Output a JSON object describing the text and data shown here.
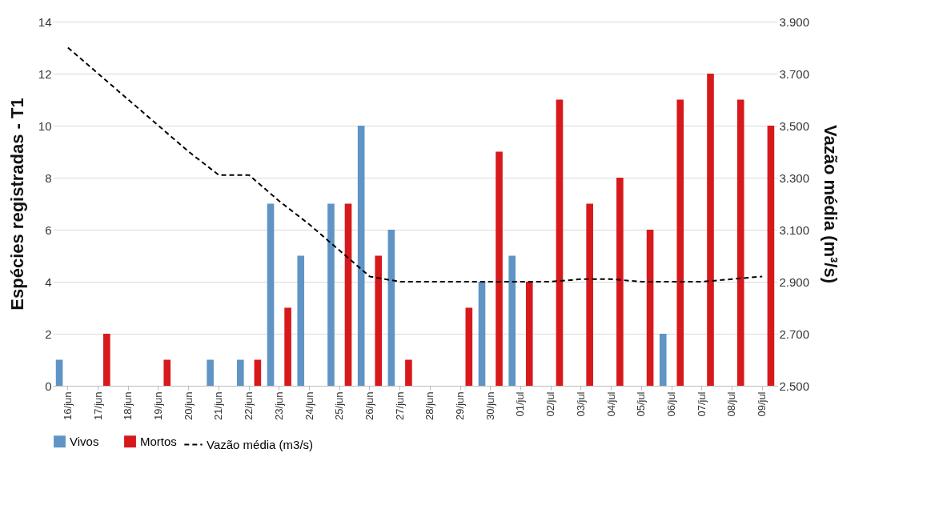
{
  "chart_data": {
    "type": "bar",
    "ylabel": "Espécies registradas - T1",
    "y2label": "Vazão média (m³/s)",
    "categories": [
      "16/jun",
      "17/jun",
      "18/jun",
      "19/jun",
      "20/jun",
      "21/jun",
      "22/jun",
      "23/jun",
      "24/jun",
      "25/jun",
      "26/jun",
      "27/jun",
      "28/jun",
      "29/jun",
      "30/jun",
      "01/jul",
      "02/jul",
      "03/jul",
      "04/jul",
      "05/jul",
      "06/jul",
      "07/jul",
      "08/jul",
      "09/jul"
    ],
    "series": [
      {
        "name": "Vivos",
        "color": "#5f94c4",
        "values": [
          1,
          0,
          0,
          0,
          0,
          1,
          1,
          7,
          5,
          7,
          10,
          6,
          0,
          0,
          4,
          5,
          0,
          0,
          0,
          0,
          2,
          0,
          0,
          0
        ]
      },
      {
        "name": "Mortos",
        "color": "#d7191c",
        "values": [
          0,
          2,
          0,
          1,
          0,
          0,
          1,
          3,
          0,
          7,
          5,
          1,
          0,
          3,
          9,
          4,
          11,
          7,
          8,
          6,
          11,
          12,
          11,
          10
        ]
      },
      {
        "name": "Vazão média (m3/s)",
        "color": "#000000",
        "type": "line",
        "axis": "y2",
        "line_style": "dashed",
        "values": [
          3.8,
          3.7,
          3.6,
          3.5,
          3.4,
          3.31,
          3.31,
          3.21,
          3.12,
          3.02,
          2.92,
          2.9,
          2.9,
          2.9,
          2.9,
          2.9,
          2.9,
          2.91,
          2.91,
          2.9,
          2.9,
          2.9,
          2.91,
          2.92
        ]
      }
    ],
    "ylim": [
      0,
      14
    ],
    "yticks": [
      0,
      2,
      4,
      6,
      8,
      10,
      12,
      14
    ],
    "y2lim": [
      2.5,
      3.9
    ],
    "y2ticks": [
      {
        "value": 2.5,
        "label": "2.500"
      },
      {
        "value": 2.7,
        "label": "2.700"
      },
      {
        "value": 2.9,
        "label": "2.900"
      },
      {
        "value": 3.1,
        "label": "3.100"
      },
      {
        "value": 3.3,
        "label": "3.300"
      },
      {
        "value": 3.5,
        "label": "3.500"
      },
      {
        "value": 3.7,
        "label": "3.700"
      },
      {
        "value": 3.9,
        "label": "3.900"
      }
    ],
    "grid": "y",
    "legend": "bottom"
  }
}
